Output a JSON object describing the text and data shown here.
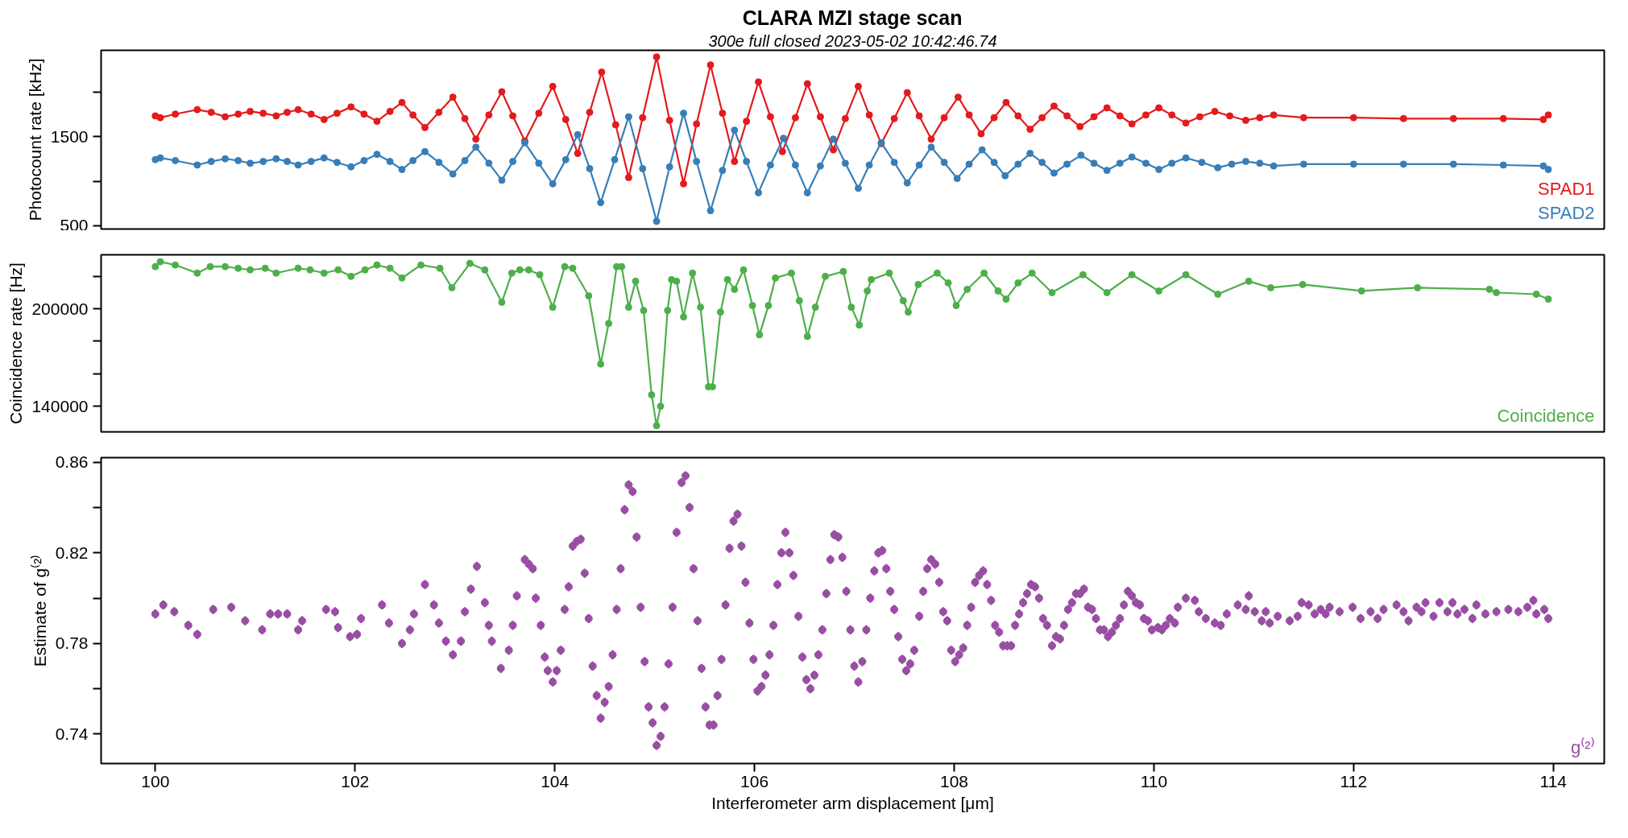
{
  "chart_data": [
    {
      "type": "line",
      "title": "CLARA MZI stage scan",
      "subtitle": "300e full closed 2023-05-02 10:42:46.74",
      "ylabel": "Photocount rate [kHz]",
      "xlim": [
        99.457,
        114.51
      ],
      "ylim": [
        464,
        2464
      ],
      "yticks": [
        500,
        {
          "value": 1000,
          "label": null
        },
        1500,
        {
          "value": 2000,
          "label": null
        }
      ],
      "tick_labels": "y",
      "marker": "circle",
      "legend": "bottom right",
      "series": [
        {
          "name": "SPAD1",
          "color": "#e41a1c",
          "x": [
            100.0,
            100.05,
            100.2,
            100.42,
            100.56,
            100.7,
            100.83,
            100.95,
            101.08,
            101.21,
            101.32,
            101.43,
            101.56,
            101.69,
            101.82,
            101.96,
            102.09,
            102.22,
            102.35,
            102.47,
            102.58,
            102.7,
            102.84,
            102.98,
            103.1,
            103.21,
            103.34,
            103.47,
            103.58,
            103.7,
            103.84,
            103.98,
            104.11,
            104.23,
            104.35,
            104.47,
            104.61,
            104.74,
            104.88,
            105.02,
            105.15,
            105.29,
            105.42,
            105.56,
            105.68,
            105.8,
            105.92,
            106.04,
            106.16,
            106.28,
            106.41,
            106.53,
            106.66,
            106.79,
            106.91,
            107.04,
            107.15,
            107.27,
            107.4,
            107.53,
            107.65,
            107.77,
            107.9,
            108.04,
            108.15,
            108.27,
            108.4,
            108.52,
            108.64,
            108.76,
            108.88,
            109.0,
            109.13,
            109.26,
            109.4,
            109.53,
            109.66,
            109.78,
            109.92,
            110.05,
            110.18,
            110.32,
            110.46,
            110.61,
            110.76,
            110.92,
            111.06,
            111.2,
            111.5,
            112.0,
            112.5,
            113.0,
            113.5,
            113.9,
            113.95
          ],
          "values": [
            1730,
            1710,
            1750,
            1800,
            1770,
            1720,
            1750,
            1780,
            1760,
            1730,
            1770,
            1800,
            1750,
            1690,
            1760,
            1830,
            1750,
            1670,
            1780,
            1880,
            1740,
            1600,
            1770,
            1940,
            1700,
            1470,
            1740,
            2000,
            1730,
            1450,
            1760,
            2060,
            1690,
            1310,
            1770,
            2220,
            1630,
            1040,
            1710,
            2390,
            1680,
            970,
            1640,
            2300,
            1760,
            1220,
            1670,
            2110,
            1720,
            1330,
            1710,
            2090,
            1720,
            1350,
            1700,
            2060,
            1740,
            1420,
            1700,
            1990,
            1730,
            1470,
            1710,
            1940,
            1740,
            1530,
            1710,
            1880,
            1730,
            1580,
            1710,
            1840,
            1730,
            1610,
            1720,
            1820,
            1730,
            1640,
            1740,
            1820,
            1740,
            1650,
            1720,
            1780,
            1730,
            1680,
            1710,
            1740,
            1710,
            1710,
            1700,
            1700,
            1700,
            1690,
            1740
          ]
        },
        {
          "name": "SPAD2",
          "color": "#377eb8",
          "x": [
            100.0,
            100.05,
            100.2,
            100.42,
            100.56,
            100.7,
            100.83,
            100.95,
            101.08,
            101.21,
            101.32,
            101.43,
            101.56,
            101.69,
            101.82,
            101.96,
            102.09,
            102.22,
            102.35,
            102.47,
            102.58,
            102.7,
            102.84,
            102.98,
            103.1,
            103.21,
            103.34,
            103.47,
            103.58,
            103.7,
            103.84,
            103.98,
            104.11,
            104.23,
            104.35,
            104.46,
            104.6,
            104.74,
            104.88,
            105.02,
            105.15,
            105.29,
            105.42,
            105.56,
            105.68,
            105.8,
            105.92,
            106.04,
            106.16,
            106.29,
            106.41,
            106.53,
            106.66,
            106.79,
            106.91,
            107.04,
            107.15,
            107.27,
            107.4,
            107.53,
            107.65,
            107.77,
            107.9,
            108.03,
            108.15,
            108.28,
            108.4,
            108.51,
            108.64,
            108.76,
            108.88,
            109.0,
            109.13,
            109.27,
            109.4,
            109.53,
            109.66,
            109.78,
            109.92,
            110.05,
            110.18,
            110.32,
            110.48,
            110.64,
            110.78,
            110.92,
            111.06,
            111.2,
            111.5,
            112.0,
            112.5,
            113.0,
            113.5,
            113.9,
            113.95
          ],
          "values": [
            1240,
            1260,
            1230,
            1180,
            1220,
            1250,
            1230,
            1200,
            1220,
            1250,
            1220,
            1180,
            1220,
            1260,
            1210,
            1160,
            1230,
            1300,
            1220,
            1130,
            1230,
            1330,
            1210,
            1080,
            1230,
            1380,
            1200,
            1010,
            1220,
            1430,
            1200,
            970,
            1240,
            1520,
            1140,
            760,
            1240,
            1720,
            1140,
            550,
            1160,
            1760,
            1220,
            670,
            1120,
            1570,
            1220,
            870,
            1180,
            1480,
            1180,
            870,
            1170,
            1470,
            1200,
            920,
            1180,
            1430,
            1210,
            980,
            1180,
            1380,
            1210,
            1030,
            1190,
            1350,
            1210,
            1060,
            1190,
            1310,
            1210,
            1090,
            1190,
            1290,
            1200,
            1120,
            1200,
            1270,
            1200,
            1130,
            1200,
            1260,
            1210,
            1150,
            1190,
            1220,
            1200,
            1170,
            1190,
            1190,
            1190,
            1190,
            1180,
            1170,
            1130
          ]
        }
      ]
    },
    {
      "type": "line",
      "ylabel": "Coincidence rate [Hz]",
      "xlim": [
        99.457,
        114.51
      ],
      "ylim": [
        124200,
        233300
      ],
      "yticks": [
        {
          "value": 220000,
          "label": null
        },
        200000,
        {
          "value": 180000,
          "label": null
        },
        {
          "value": 160000,
          "label": null
        },
        140000
      ],
      "tick_labels": "y",
      "marker": "circle",
      "legend": "bottom right",
      "series": [
        {
          "name": "Coincidence",
          "color": "#4daf4a",
          "x": [
            100.0,
            100.05,
            100.2,
            100.42,
            100.55,
            100.7,
            100.83,
            100.95,
            101.1,
            101.21,
            101.43,
            101.55,
            101.69,
            101.83,
            101.96,
            102.1,
            102.22,
            102.35,
            102.47,
            102.66,
            102.85,
            102.97,
            103.15,
            103.3,
            103.47,
            103.57,
            103.65,
            103.74,
            103.85,
            103.98,
            104.1,
            104.18,
            104.34,
            104.46,
            104.54,
            104.62,
            104.67,
            104.74,
            104.81,
            104.89,
            104.97,
            105.02,
            105.06,
            105.13,
            105.17,
            105.22,
            105.29,
            105.38,
            105.46,
            105.54,
            105.58,
            105.66,
            105.73,
            105.8,
            105.89,
            105.98,
            106.05,
            106.14,
            106.21,
            106.37,
            106.45,
            106.53,
            106.61,
            106.71,
            106.89,
            106.97,
            107.05,
            107.13,
            107.17,
            107.35,
            107.49,
            107.54,
            107.64,
            107.83,
            107.94,
            108.02,
            108.13,
            108.3,
            108.44,
            108.52,
            108.64,
            108.78,
            108.98,
            109.29,
            109.53,
            109.78,
            110.05,
            110.32,
            110.64,
            110.95,
            111.17,
            111.49,
            112.08,
            112.64,
            113.36,
            113.43,
            113.83,
            113.95
          ],
          "values": [
            226000,
            229000,
            227000,
            222000,
            226000,
            226000,
            225000,
            224000,
            225000,
            222000,
            225000,
            224000,
            222000,
            224000,
            220000,
            224000,
            227000,
            225000,
            219000,
            227000,
            225000,
            213000,
            228000,
            224000,
            204000,
            222000,
            224000,
            224000,
            221000,
            201000,
            226000,
            225000,
            208000,
            166000,
            191000,
            226000,
            226000,
            201000,
            217000,
            199000,
            147000,
            128000,
            140000,
            199000,
            218000,
            217000,
            195000,
            222000,
            201000,
            152000,
            152000,
            198000,
            218000,
            212000,
            224000,
            202000,
            184000,
            202000,
            219000,
            222000,
            205000,
            183000,
            201000,
            220000,
            223000,
            201000,
            190000,
            211000,
            218000,
            222000,
            205000,
            198000,
            215000,
            222000,
            216000,
            202000,
            212000,
            222000,
            211000,
            206000,
            216000,
            222000,
            210000,
            221000,
            210000,
            221000,
            211000,
            221000,
            209000,
            217000,
            213000,
            215000,
            211000,
            213000,
            212000,
            210000,
            209000,
            206000
          ]
        }
      ]
    },
    {
      "type": "scatter",
      "ylabel": "Estimate of g⁽²⁾",
      "xlabel": "Interferometer arm displacement [μm]",
      "xlim": [
        99.457,
        114.51
      ],
      "xticks": [
        100,
        102,
        104,
        106,
        108,
        110,
        112,
        114
      ],
      "ylim": [
        0.727,
        0.862
      ],
      "yticks": [
        0.74,
        {
          "value": 0.76,
          "label": null
        },
        0.78,
        {
          "value": 0.8,
          "label": null
        },
        0.82,
        {
          "value": 0.84,
          "label": null
        },
        0.86
      ],
      "marker": "circle",
      "legend": "bottom right",
      "series": [
        {
          "name": "g⁽²⁾",
          "color": "#984ea3",
          "x": [
            100.0,
            100.08,
            100.19,
            100.33,
            100.42,
            100.58,
            100.76,
            100.9,
            101.07,
            101.15,
            101.23,
            101.32,
            101.43,
            101.47,
            101.71,
            101.8,
            101.83,
            101.95,
            102.02,
            102.06,
            102.27,
            102.34,
            102.47,
            102.55,
            102.59,
            102.7,
            102.79,
            102.84,
            102.91,
            102.98,
            103.06,
            103.1,
            103.16,
            103.22,
            103.3,
            103.34,
            103.37,
            103.46,
            103.54,
            103.58,
            103.62,
            103.7,
            103.74,
            103.78,
            103.81,
            103.86,
            103.9,
            103.93,
            103.98,
            104.02,
            104.06,
            104.1,
            104.14,
            104.18,
            104.22,
            104.26,
            104.3,
            104.34,
            104.38,
            104.42,
            104.46,
            104.5,
            104.54,
            104.58,
            104.62,
            104.66,
            104.7,
            104.74,
            104.78,
            104.82,
            104.86,
            104.9,
            104.94,
            104.98,
            105.02,
            105.06,
            105.1,
            105.14,
            105.18,
            105.22,
            105.27,
            105.31,
            105.35,
            105.39,
            105.43,
            105.47,
            105.51,
            105.55,
            105.59,
            105.63,
            105.67,
            105.71,
            105.75,
            105.79,
            105.83,
            105.87,
            105.91,
            105.95,
            105.99,
            106.03,
            106.07,
            106.11,
            106.15,
            106.19,
            106.23,
            106.27,
            106.31,
            106.35,
            106.39,
            106.44,
            106.48,
            106.52,
            106.56,
            106.6,
            106.64,
            106.68,
            106.72,
            106.76,
            106.8,
            106.84,
            106.88,
            106.92,
            106.96,
            107.0,
            107.04,
            107.08,
            107.12,
            107.16,
            107.2,
            107.24,
            107.28,
            107.32,
            107.36,
            107.4,
            107.44,
            107.48,
            107.52,
            107.56,
            107.6,
            107.65,
            107.69,
            107.73,
            107.77,
            107.81,
            107.85,
            107.89,
            107.93,
            107.97,
            108.01,
            108.05,
            108.09,
            108.13,
            108.17,
            108.21,
            108.25,
            108.29,
            108.33,
            108.37,
            108.41,
            108.45,
            108.49,
            108.53,
            108.57,
            108.61,
            108.65,
            108.69,
            108.73,
            108.77,
            108.81,
            108.85,
            108.89,
            108.93,
            108.98,
            109.02,
            109.06,
            109.1,
            109.14,
            109.18,
            109.22,
            109.26,
            109.3,
            109.34,
            109.38,
            109.42,
            109.46,
            109.5,
            109.54,
            109.58,
            109.62,
            109.66,
            109.7,
            109.74,
            109.78,
            109.82,
            109.86,
            109.9,
            109.94,
            109.98,
            110.04,
            110.08,
            110.12,
            110.16,
            110.21,
            110.24,
            110.32,
            110.41,
            110.45,
            110.52,
            110.61,
            110.67,
            110.73,
            110.84,
            110.92,
            110.95,
            111.01,
            111.08,
            111.12,
            111.16,
            111.24,
            111.36,
            111.44,
            111.48,
            111.55,
            111.61,
            111.67,
            111.72,
            111.76,
            111.86,
            111.99,
            112.07,
            112.17,
            112.24,
            112.3,
            112.43,
            112.5,
            112.55,
            112.63,
            112.68,
            112.72,
            112.8,
            112.86,
            112.94,
            112.99,
            113.04,
            113.11,
            113.19,
            113.23,
            113.32,
            113.43,
            113.55,
            113.65,
            113.74,
            113.8,
            113.83,
            113.91,
            113.95
          ],
          "values": [
            0.793,
            0.797,
            0.794,
            0.788,
            0.784,
            0.795,
            0.796,
            0.79,
            0.786,
            0.793,
            0.793,
            0.793,
            0.786,
            0.79,
            0.795,
            0.794,
            0.787,
            0.783,
            0.784,
            0.791,
            0.797,
            0.789,
            0.78,
            0.786,
            0.793,
            0.806,
            0.797,
            0.789,
            0.781,
            0.775,
            0.781,
            0.794,
            0.804,
            0.814,
            0.798,
            0.788,
            0.781,
            0.769,
            0.777,
            0.788,
            0.801,
            0.817,
            0.815,
            0.813,
            0.8,
            0.788,
            0.774,
            0.768,
            0.763,
            0.768,
            0.777,
            0.795,
            0.805,
            0.823,
            0.825,
            0.826,
            0.811,
            0.791,
            0.77,
            0.757,
            0.747,
            0.754,
            0.761,
            0.775,
            0.795,
            0.813,
            0.839,
            0.85,
            0.847,
            0.827,
            0.796,
            0.772,
            0.752,
            0.745,
            0.735,
            0.739,
            0.752,
            0.771,
            0.796,
            0.829,
            0.851,
            0.854,
            0.84,
            0.813,
            0.79,
            0.769,
            0.752,
            0.744,
            0.744,
            0.757,
            0.773,
            0.797,
            0.822,
            0.834,
            0.837,
            0.823,
            0.807,
            0.789,
            0.773,
            0.759,
            0.761,
            0.766,
            0.775,
            0.788,
            0.806,
            0.82,
            0.829,
            0.82,
            0.81,
            0.792,
            0.774,
            0.764,
            0.76,
            0.766,
            0.775,
            0.786,
            0.802,
            0.817,
            0.828,
            0.827,
            0.818,
            0.803,
            0.786,
            0.77,
            0.763,
            0.772,
            0.786,
            0.8,
            0.812,
            0.82,
            0.821,
            0.813,
            0.803,
            0.795,
            0.783,
            0.773,
            0.768,
            0.771,
            0.777,
            0.792,
            0.803,
            0.813,
            0.817,
            0.815,
            0.807,
            0.794,
            0.79,
            0.777,
            0.772,
            0.775,
            0.778,
            0.788,
            0.796,
            0.807,
            0.81,
            0.812,
            0.806,
            0.799,
            0.788,
            0.785,
            0.779,
            0.779,
            0.779,
            0.788,
            0.793,
            0.798,
            0.802,
            0.806,
            0.805,
            0.8,
            0.791,
            0.788,
            0.779,
            0.783,
            0.782,
            0.788,
            0.795,
            0.798,
            0.802,
            0.802,
            0.804,
            0.796,
            0.795,
            0.791,
            0.786,
            0.786,
            0.783,
            0.785,
            0.788,
            0.791,
            0.797,
            0.803,
            0.801,
            0.798,
            0.797,
            0.791,
            0.79,
            0.786,
            0.787,
            0.786,
            0.788,
            0.791,
            0.789,
            0.796,
            0.8,
            0.799,
            0.794,
            0.791,
            0.789,
            0.788,
            0.793,
            0.797,
            0.795,
            0.801,
            0.794,
            0.79,
            0.794,
            0.789,
            0.792,
            0.79,
            0.792,
            0.798,
            0.797,
            0.793,
            0.795,
            0.793,
            0.796,
            0.794,
            0.796,
            0.791,
            0.794,
            0.791,
            0.795,
            0.797,
            0.794,
            0.79,
            0.796,
            0.794,
            0.798,
            0.792,
            0.798,
            0.794,
            0.798,
            0.793,
            0.795,
            0.791,
            0.797,
            0.793,
            0.794,
            0.795,
            0.794,
            0.796,
            0.799,
            0.793,
            0.795,
            0.791
          ],
          "errors": [
            0.002,
            0.002,
            0.002,
            0.002,
            0.002,
            0.002,
            0.002,
            0.002,
            0.002,
            0.002,
            0.002,
            0.002,
            0.002,
            0.002,
            0.002,
            0.002,
            0.002,
            0.002,
            0.002,
            0.002,
            0.002,
            0.002,
            0.002,
            0.002,
            0.002,
            0.002,
            0.002,
            0.002,
            0.002,
            0.002,
            0.002,
            0.002,
            0.002,
            0.002,
            0.002,
            0.002,
            0.002,
            0.002,
            0.002,
            0.002,
            0.002,
            0.002,
            0.002,
            0.002,
            0.002,
            0.002,
            0.002,
            0.002,
            0.002,
            0.002,
            0.002,
            0.002,
            0.002,
            0.002,
            0.002,
            0.002,
            0.002,
            0.002,
            0.002,
            0.002,
            0.002,
            0.002,
            0.002,
            0.002,
            0.002,
            0.002,
            0.002,
            0.002,
            0.002,
            0.002,
            0.002,
            0.002,
            0.002,
            0.002,
            0.002,
            0.002,
            0.002,
            0.002,
            0.002,
            0.002,
            0.002,
            0.002,
            0.002,
            0.002,
            0.002,
            0.002,
            0.002,
            0.002,
            0.002,
            0.002,
            0.002,
            0.002,
            0.002,
            0.002,
            0.002,
            0.002,
            0.002,
            0.002,
            0.002,
            0.002,
            0.002,
            0.002,
            0.002,
            0.002,
            0.002,
            0.002,
            0.002,
            0.002,
            0.002,
            0.002,
            0.002,
            0.002,
            0.002,
            0.002,
            0.002,
            0.002,
            0.002,
            0.002,
            0.002,
            0.002,
            0.002,
            0.002,
            0.002,
            0.002,
            0.002,
            0.002,
            0.002,
            0.002,
            0.002,
            0.002,
            0.002,
            0.002,
            0.002,
            0.002,
            0.002,
            0.002,
            0.002,
            0.002,
            0.002,
            0.002,
            0.002,
            0.002,
            0.002,
            0.002,
            0.002,
            0.002,
            0.002,
            0.002,
            0.002,
            0.002,
            0.002,
            0.002,
            0.002,
            0.002,
            0.002,
            0.002,
            0.002,
            0.002,
            0.002,
            0.002,
            0.002,
            0.002,
            0.002,
            0.002,
            0.002,
            0.002,
            0.002,
            0.002,
            0.002,
            0.002,
            0.002,
            0.002,
            0.002,
            0.002,
            0.002,
            0.002,
            0.002,
            0.002,
            0.002,
            0.002,
            0.002,
            0.002,
            0.002,
            0.002,
            0.002,
            0.002,
            0.002,
            0.002,
            0.002,
            0.002,
            0.002,
            0.002,
            0.002,
            0.002,
            0.002,
            0.002,
            0.002,
            0.002,
            0.002,
            0.002,
            0.002,
            0.002,
            0.002,
            0.002,
            0.002,
            0.002,
            0.002,
            0.002,
            0.002,
            0.002,
            0.002,
            0.002,
            0.002,
            0.002,
            0.002,
            0.002,
            0.002,
            0.002,
            0.002,
            0.002,
            0.002,
            0.002,
            0.002,
            0.002,
            0.002,
            0.002,
            0.002,
            0.002,
            0.002,
            0.002,
            0.002,
            0.002,
            0.002,
            0.002,
            0.002,
            0.002,
            0.002,
            0.002,
            0.002,
            0.002,
            0.002,
            0.002,
            0.002,
            0.002,
            0.002,
            0.002,
            0.002,
            0.002,
            0.002,
            0.002,
            0.002,
            0.002,
            0.002,
            0.002,
            0.002,
            0.002
          ]
        }
      ]
    }
  ]
}
